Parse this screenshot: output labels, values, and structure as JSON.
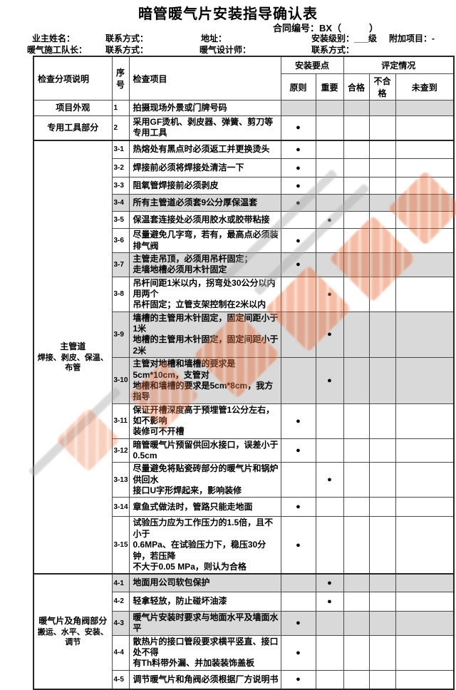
{
  "title": "暗管暖气片安装指导确认表",
  "contract_line": "合同编号：BX（　　　）",
  "info": {
    "owner_name": "业主姓名：",
    "contact1": "联系方式：",
    "address": "地址：",
    "install_level": "安装级别：___级",
    "additional_project": "附加项目：-",
    "team_leader": "暖气施工队长：",
    "contact2": "联系方式：",
    "designer": "暖气设计师：",
    "contact3": "联系方式："
  },
  "table": {
    "col_headers": {
      "category": "检查分项说明",
      "no": "序号",
      "item": "检查项目",
      "install_points": "安装要点",
      "evaluation": "评定情况",
      "principle": "原则",
      "important": "重要",
      "qualified": "合格",
      "unqualified": "不合格",
      "not_checked": "未查到"
    },
    "bullet": "●",
    "sections": [
      {
        "category": "项目外观",
        "category_sub": "",
        "rows": [
          {
            "no": "1",
            "item": "拍摄现场外景或门牌号码",
            "mark": "",
            "shaded_marks": true
          }
        ]
      },
      {
        "category": "专用工具部分",
        "category_sub": "",
        "rows": [
          {
            "no": "2",
            "item": "采用GF烫机、剥皮器、弹簧、剪刀等专用工具",
            "mark": "principle"
          }
        ]
      },
      {
        "category": "主管道",
        "category_sub": "焊接、剥皮、保温、布管",
        "rows": [
          {
            "no": "3-1",
            "item": "热熔处有黑点时必须返工并更换烫头",
            "mark": "principle"
          },
          {
            "no": "3-2",
            "item": "焊接前必须将焊接处清洁一下",
            "mark": "principle"
          },
          {
            "no": "3-3",
            "item": "阻氧管焊接前必须剥皮",
            "mark": "principle"
          },
          {
            "no": "3-4",
            "item": "所有主管道必须套9公分厚保温套",
            "mark": "principle",
            "shaded": true
          },
          {
            "no": "3-5",
            "item": "保温套连接处必须用胶水或胶带粘接",
            "mark": "important"
          },
          {
            "no": "3-6",
            "item": "尽量避免几字弯，若有，最高点必须装排气阀",
            "mark": "principle"
          },
          {
            "no": "3-7",
            "item": "主管走吊顶，必须用吊杆固定；\n走墙地槽必须用木针固定",
            "mark": "principle",
            "shaded": true
          },
          {
            "no": "3-8",
            "item": "吊杆间距1米以内，拐弯处30公分以内用两个\n吊杆固定；立管支架控制在2米以内",
            "mark": "important"
          },
          {
            "no": "3-9",
            "item": "墙槽的主管用木针固定，固定间距小于1米\n地槽的主管用木针固定，固定间距小于2米",
            "mark": "important",
            "shaded": true
          },
          {
            "no": "3-10",
            "item": "主管对地槽和墙槽的要求是5cm*10cm，支管对\n地槽和墙槽的要求是5cm*8cm，我方指导",
            "mark": "important",
            "shaded": true
          },
          {
            "no": "3-11",
            "item": "保证开槽深度高于预埋管1公分左右，如不影响\n装修可不开槽",
            "mark": "principle"
          },
          {
            "no": "3-12",
            "item": "暗管暖气片预留供回水接口，误差小于0.5cm",
            "mark": "principle"
          },
          {
            "no": "3-13",
            "item": "尽量避免将贴瓷砖部分的暖气片和锅炉供回水\n接口U字形焊起来，影响装修",
            "mark": "important"
          },
          {
            "no": "3-14",
            "item": "章鱼式做法时，管路只能走地面",
            "mark": "principle"
          },
          {
            "no": "3-15",
            "item": "试验压力应为工作压力的1.5倍，且不小于\n0.6MPa、在试验压力下，稳压30分钟，若压降\n不大于0.05 MPa，则认为合格",
            "mark": "principle"
          }
        ]
      },
      {
        "category": "暖气片及角阀部分",
        "category_sub": "搬运、水平、安装、调节",
        "rows": [
          {
            "no": "4-1",
            "item": "地面用公司软包保护",
            "mark": "important",
            "shaded": true
          },
          {
            "no": "4-2",
            "item": "轻拿轻放，防止碰坏油漆",
            "mark": "important"
          },
          {
            "no": "4-3",
            "item": "暖气片安装时要求与地面水平及墙面水平",
            "mark": "principle",
            "shaded": true
          },
          {
            "no": "4-4",
            "item": "散热片的接口管段要求横平竖直、接口处不得\n有Th料带外漏、并加装装饰盖板",
            "mark": "principle"
          },
          {
            "no": "4-5",
            "item": "调节暖气片和角阀必须根据厂方说明书",
            "mark": "principle"
          }
        ]
      }
    ]
  },
  "colors": {
    "shaded_row": "#d9d9d9",
    "watermark_orange": "#e8632c",
    "border": "#4a4a4a"
  }
}
